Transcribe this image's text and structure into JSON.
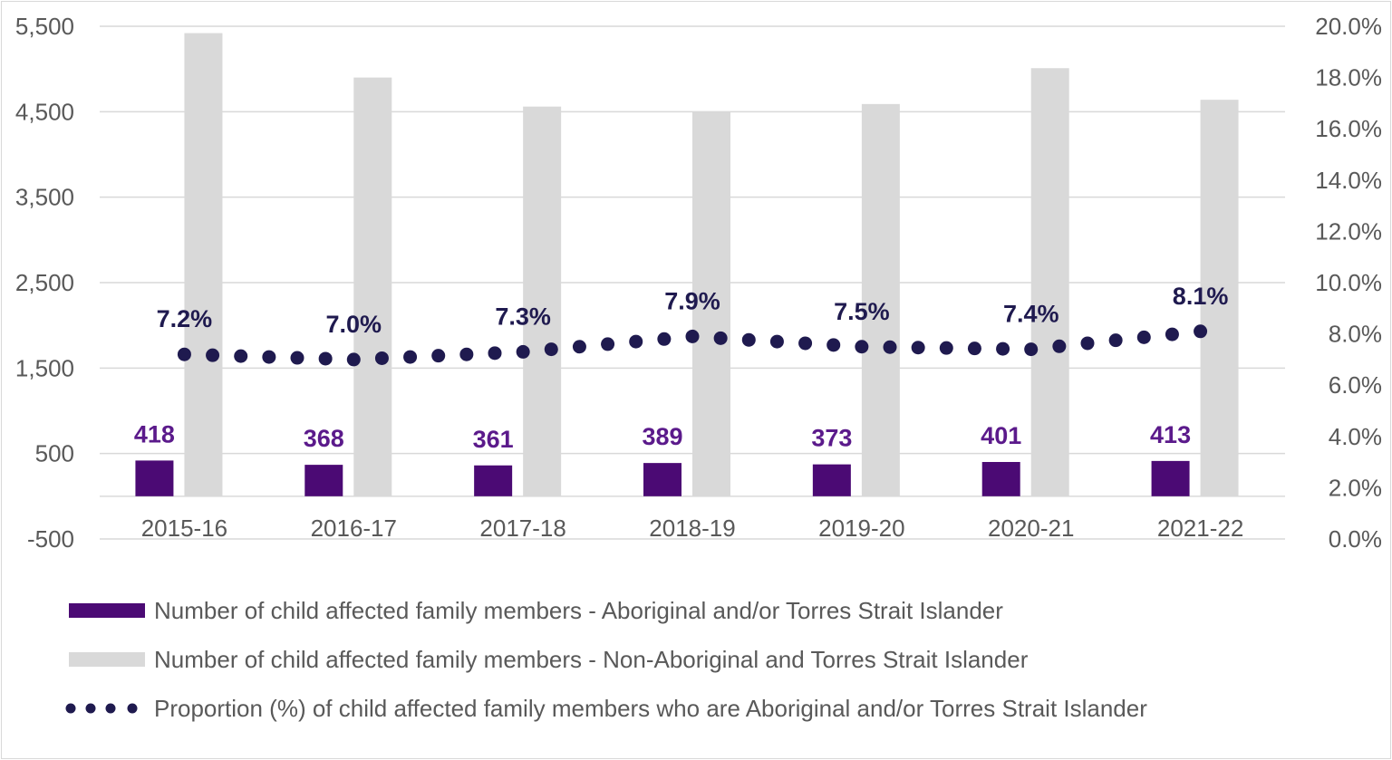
{
  "chart_data": {
    "type": "bar",
    "categories": [
      "2015-16",
      "2016-17",
      "2017-18",
      "2018-19",
      "2019-20",
      "2020-21",
      "2021-22"
    ],
    "series": [
      {
        "name": "Number of child affected family members - Aboriginal and/or Torres Strait Islander",
        "axis": "left",
        "kind": "bar",
        "values": [
          418,
          368,
          361,
          389,
          373,
          401,
          413
        ],
        "value_labels": [
          "418",
          "368",
          "361",
          "389",
          "373",
          "401",
          "413"
        ],
        "color": "#4b0a74"
      },
      {
        "name": "Number of child affected family members - Non-Aboriginal and Torres Strait Islander",
        "axis": "left",
        "kind": "bar",
        "values": [
          5420,
          4900,
          4560,
          4500,
          4590,
          5010,
          4640
        ],
        "color": "#d9d9d9"
      },
      {
        "name": "Proportion (%) of child affected family members who are Aboriginal and/or Torres Strait Islander",
        "axis": "right",
        "kind": "dotted-line",
        "values": [
          7.2,
          7.0,
          7.3,
          7.9,
          7.5,
          7.4,
          8.1
        ],
        "value_labels": [
          "7.2%",
          "7.0%",
          "7.3%",
          "7.9%",
          "7.5%",
          "7.4%",
          "8.1%"
        ],
        "color": "#1f1a4f"
      }
    ],
    "y_left": {
      "ylim": [
        -500,
        5500
      ],
      "ticks": [
        -500,
        500,
        1500,
        2500,
        3500,
        4500,
        5500
      ],
      "tick_labels": [
        "-500",
        "500",
        "1,500",
        "2,500",
        "3,500",
        "4,500",
        "5,500"
      ]
    },
    "y_right": {
      "ylim": [
        0,
        20
      ],
      "ticks": [
        0,
        2,
        4,
        6,
        8,
        10,
        12,
        14,
        16,
        18,
        20
      ],
      "tick_labels": [
        "0.0%",
        "2.0%",
        "4.0%",
        "6.0%",
        "8.0%",
        "10.0%",
        "12.0%",
        "14.0%",
        "16.0%",
        "18.0%",
        "20.0%"
      ]
    },
    "grid": true,
    "legend_position": "bottom"
  }
}
